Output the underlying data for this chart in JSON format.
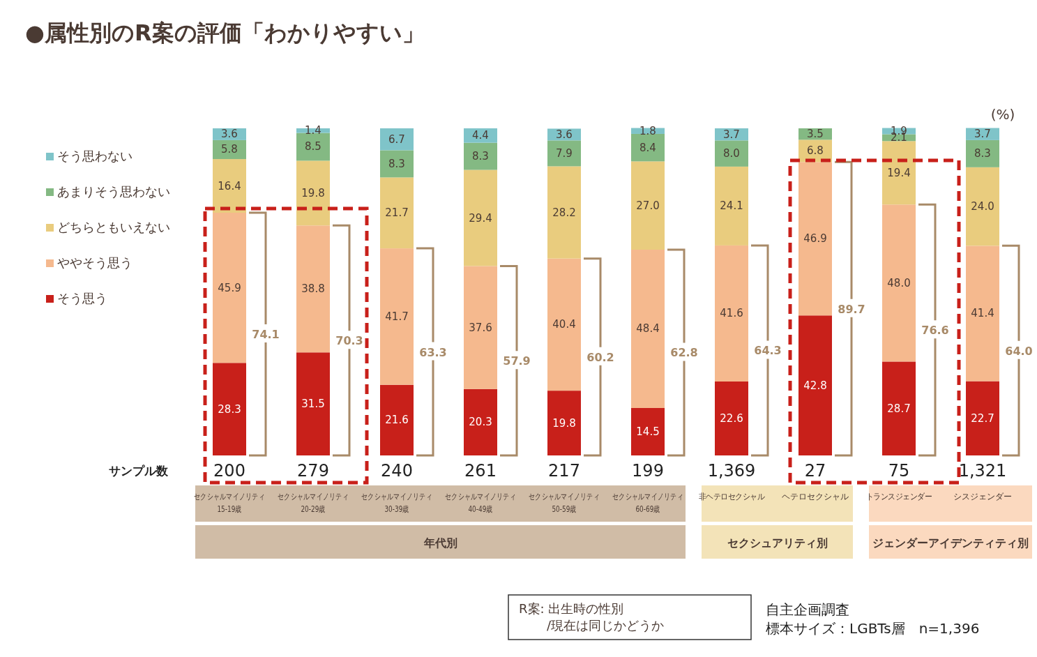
{
  "chart_data": {
    "type": "bar",
    "stacked": true,
    "title": "●属性別のR案の評価「わかりやすい」",
    "ylabel": "(%)",
    "ylim": [
      0,
      100
    ],
    "legend": "left",
    "categories": [
      "セクシャルマイノリティ15-19歳",
      "セクシャルマイノリティ20-29歳",
      "セクシャルマイノリティ30-39歳",
      "セクシャルマイノリティ40-49歳",
      "セクシャルマイノリティ50-59歳",
      "セクシャルマイノリティ60-69歳",
      "非ヘテロセクシャル",
      "ヘテロセクシャル",
      "トランスジェンダー",
      "シスジェンダー"
    ],
    "series": [
      {
        "name": "そう思う",
        "color": "#c8201a",
        "values": [
          28.3,
          31.5,
          21.6,
          20.3,
          19.8,
          14.5,
          22.6,
          42.8,
          28.7,
          22.7
        ],
        "value_labels": [
          "28.3",
          "31.5",
          "21.6",
          "20.3",
          "19.8",
          "14.5",
          "22.6",
          "42.8",
          "28.7",
          "22.7"
        ]
      },
      {
        "name": "ややそう思う",
        "color": "#f5b98e",
        "values": [
          45.9,
          38.8,
          41.7,
          37.6,
          40.4,
          48.4,
          41.6,
          46.9,
          48.0,
          41.4
        ],
        "value_labels": [
          "45.9",
          "38.8",
          "41.7",
          "37.6",
          "40.4",
          "48.4",
          "41.6",
          "46.9",
          "48.0",
          "41.4"
        ]
      },
      {
        "name": "どちらともいえない",
        "color": "#e9cc7e",
        "values": [
          16.4,
          19.8,
          21.7,
          29.4,
          28.2,
          27.0,
          24.1,
          6.8,
          19.4,
          24.0
        ],
        "value_labels": [
          "16.4",
          "19.8",
          "21.7",
          "29.4",
          "28.2",
          "27.0",
          "24.1",
          "6.8",
          "19.4",
          "24.0"
        ]
      },
      {
        "name": "あまりそう思わない",
        "color": "#84b983",
        "values": [
          5.8,
          8.5,
          8.3,
          8.3,
          7.9,
          8.4,
          8.0,
          3.5,
          2.1,
          8.3
        ],
        "value_labels": [
          "5.8",
          "8.5",
          "8.3",
          "8.3",
          "7.9",
          "8.4",
          "8.0",
          "3.5",
          "2.1",
          "8.3"
        ]
      },
      {
        "name": "そう思わない",
        "color": "#7fc4c9",
        "values": [
          3.6,
          1.4,
          6.7,
          4.4,
          3.6,
          1.8,
          3.7,
          null,
          1.9,
          3.7
        ],
        "value_labels": [
          "3.6",
          "1.4",
          "6.7",
          "4.4",
          "3.6",
          "1.8",
          "3.7",
          null,
          "1.9",
          "3.7"
        ]
      }
    ],
    "annotations": [
      "74.1",
      "70.3",
      "63.3",
      "57.9",
      "60.2",
      "62.8",
      "64.3",
      "89.7",
      "76.6",
      "64.0",
      "200",
      "279",
      "240",
      "261",
      "217",
      "199",
      "1,369",
      "27",
      "75",
      "1,321",
      "サンプル数",
      "年代別",
      "セクシュアリティ別",
      "ジェンダーアイデンティティ別",
      "R案: 出生時の性別",
      "/現在は同じかどうか",
      "自主企画調査",
      "標本サイズ：LGBTs層　n=1,396"
    ]
  }
}
